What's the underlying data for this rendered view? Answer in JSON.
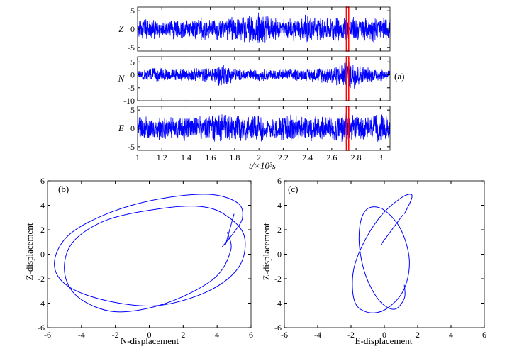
{
  "figure": {
    "panel_a_label": "(a)",
    "panel_b_label": "(b)",
    "panel_c_label": "(c)",
    "time_axis_label": "t/×10³s",
    "b_xlabel": "N-displacement",
    "b_ylabel": "Z-displacement",
    "c_xlabel": "E-displacement",
    "c_ylabel": "Z-displacement"
  },
  "colors": {
    "trace": "#0000ff",
    "marker": "#ff0000",
    "axes": "#000000"
  },
  "chart_data": [
    {
      "type": "line",
      "panel": "(a)",
      "channel": "Z",
      "xlabel": "t/×10³s",
      "xlim": [
        1,
        3.08
      ],
      "ylim": [
        -6,
        6
      ],
      "xticks": [
        1,
        1.2,
        1.4,
        1.6,
        1.8,
        2,
        2.2,
        2.4,
        2.6,
        2.8,
        3
      ],
      "yticks": [
        -5,
        0,
        5
      ],
      "highlight_window": [
        2.72,
        2.74
      ],
      "x": [
        1.0,
        1.1,
        1.2,
        1.3,
        1.4,
        1.5,
        1.6,
        1.7,
        1.8,
        1.9,
        2.0,
        2.1,
        2.2,
        2.3,
        2.4,
        2.5,
        2.6,
        2.7,
        2.8,
        2.9,
        3.0,
        3.08
      ],
      "envelope": [
        2.5,
        3.2,
        2.6,
        3.0,
        2.8,
        3.6,
        3.2,
        3.4,
        4.2,
        3.6,
        5.2,
        3.4,
        3.0,
        3.4,
        4.2,
        3.6,
        3.4,
        3.8,
        3.6,
        3.4,
        3.8,
        3.0
      ]
    },
    {
      "type": "line",
      "panel": "(a)",
      "channel": "N",
      "xlim": [
        1,
        3.08
      ],
      "ylim": [
        -10,
        7
      ],
      "yticks": [
        -10,
        -5,
        0,
        5
      ],
      "highlight_window": [
        2.72,
        2.74
      ],
      "x": [
        1.0,
        1.1,
        1.2,
        1.3,
        1.4,
        1.5,
        1.6,
        1.7,
        1.8,
        1.9,
        2.0,
        2.1,
        2.2,
        2.3,
        2.4,
        2.5,
        2.6,
        2.7,
        2.8,
        2.9,
        3.0,
        3.08
      ],
      "envelope": [
        2.0,
        2.8,
        3.0,
        2.4,
        2.6,
        2.8,
        3.0,
        5.0,
        2.8,
        2.2,
        2.6,
        2.4,
        2.2,
        2.6,
        2.4,
        3.0,
        3.8,
        5.0,
        6.5,
        3.2,
        2.8,
        2.4
      ]
    },
    {
      "type": "line",
      "panel": "(a)",
      "channel": "E",
      "xlim": [
        1,
        3.08
      ],
      "ylim": [
        -6,
        6
      ],
      "yticks": [
        -5,
        0,
        5
      ],
      "highlight_window": [
        2.72,
        2.74
      ],
      "x": [
        1.0,
        1.1,
        1.2,
        1.3,
        1.4,
        1.5,
        1.6,
        1.7,
        1.8,
        1.9,
        2.0,
        2.1,
        2.2,
        2.3,
        2.4,
        2.5,
        2.6,
        2.7,
        2.8,
        2.9,
        3.0,
        3.08
      ],
      "envelope": [
        3.2,
        4.0,
        3.4,
        3.2,
        3.6,
        3.4,
        3.6,
        4.4,
        3.8,
        3.6,
        4.0,
        3.4,
        3.6,
        4.2,
        3.6,
        3.8,
        3.6,
        4.6,
        3.8,
        3.6,
        4.2,
        3.6
      ]
    },
    {
      "type": "line",
      "panel": "(b)",
      "xlabel": "N-displacement",
      "ylabel": "Z-displacement",
      "xlim": [
        -6,
        6
      ],
      "ylim": [
        -6,
        6
      ],
      "xticks": [
        -6,
        -4,
        -2,
        0,
        2,
        4,
        6
      ],
      "yticks": [
        -6,
        -4,
        -2,
        0,
        2,
        4,
        6
      ],
      "x": [
        4.3,
        5.0,
        5.5,
        5.2,
        3.5,
        0.5,
        -2.5,
        -4.8,
        -5.6,
        -4.8,
        -2.5,
        0.5,
        3.5,
        5.3,
        5.6,
        4.5,
        3.0,
        0.5,
        -2.5,
        -4.5,
        -5.0,
        -4.2,
        -2.0,
        1.0,
        3.8,
        4.8,
        4.6
      ],
      "y": [
        0.6,
        1.8,
        3.0,
        4.2,
        4.9,
        4.5,
        3.3,
        1.5,
        -0.8,
        -2.6,
        -3.8,
        -4.2,
        -3.0,
        -1.0,
        1.5,
        3.2,
        3.9,
        3.7,
        2.8,
        1.0,
        -1.4,
        -3.5,
        -4.7,
        -4.0,
        -2.0,
        0.3,
        1.8
      ],
      "trace_a": [
        4.5,
        0.8,
        5.0,
        3.3
      ]
    },
    {
      "type": "line",
      "panel": "(c)",
      "xlabel": "E-displacement",
      "ylabel": "Z-displacement",
      "xlim": [
        -6,
        6
      ],
      "ylim": [
        -6,
        6
      ],
      "xticks": [
        -6,
        -4,
        -2,
        0,
        2,
        4,
        6
      ],
      "yticks": [
        -6,
        -4,
        -2,
        0,
        2,
        4,
        6
      ],
      "x": [
        1.2,
        1.6,
        1.6,
        1.0,
        -0.1,
        -1.1,
        -1.8,
        -1.9,
        -1.6,
        -0.7,
        0.3,
        1.2,
        1.5,
        1.0,
        0.0,
        -0.9,
        -1.4,
        -1.5,
        -1.1,
        -0.3,
        0.6,
        1.2,
        1.2
      ],
      "y": [
        3.3,
        4.4,
        4.9,
        4.6,
        3.3,
        1.3,
        -1.0,
        -3.0,
        -4.3,
        -4.8,
        -4.3,
        -2.8,
        -0.5,
        2.0,
        3.6,
        3.8,
        2.8,
        0.7,
        -1.8,
        -3.8,
        -4.5,
        -3.6,
        -2.5
      ],
      "trace_a": [
        -0.2,
        0.8,
        1.1,
        3.2
      ]
    }
  ]
}
